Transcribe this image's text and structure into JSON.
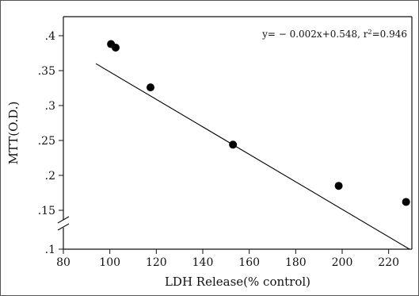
{
  "chart_data": {
    "type": "scatter",
    "x": [
      100.5,
      102.5,
      117.5,
      153,
      198.5,
      227.5
    ],
    "y": [
      0.388,
      0.383,
      0.326,
      0.244,
      0.185,
      0.162
    ],
    "fit": {
      "slope": -0.002,
      "intercept": 0.548,
      "x_range": [
        94,
        229
      ]
    },
    "annotation": {
      "formula": "y= − 0.002x+0.548, r",
      "sup": "2",
      "tail": "=0.946"
    },
    "xlabel": "LDH Release(% control)",
    "ylabel": "MTT(O.D.)",
    "xlim": [
      80,
      230
    ],
    "ylim": [
      0.1,
      0.41
    ],
    "xticks": [
      80,
      100,
      120,
      140,
      160,
      180,
      200,
      220
    ],
    "xtick_labels": [
      "80",
      "100",
      "120",
      "140",
      "160",
      "180",
      "200",
      "220"
    ],
    "yticks": [
      0.1,
      0.15,
      0.2,
      0.25,
      0.3,
      0.35,
      0.4
    ],
    "ytick_labels": [
      ".1",
      ".15",
      ".2",
      ".25",
      ".3",
      ".35",
      ".4"
    ],
    "y_axis_break": true,
    "grid": false,
    "colors": {
      "point": "#000000",
      "line": "#000000"
    }
  }
}
